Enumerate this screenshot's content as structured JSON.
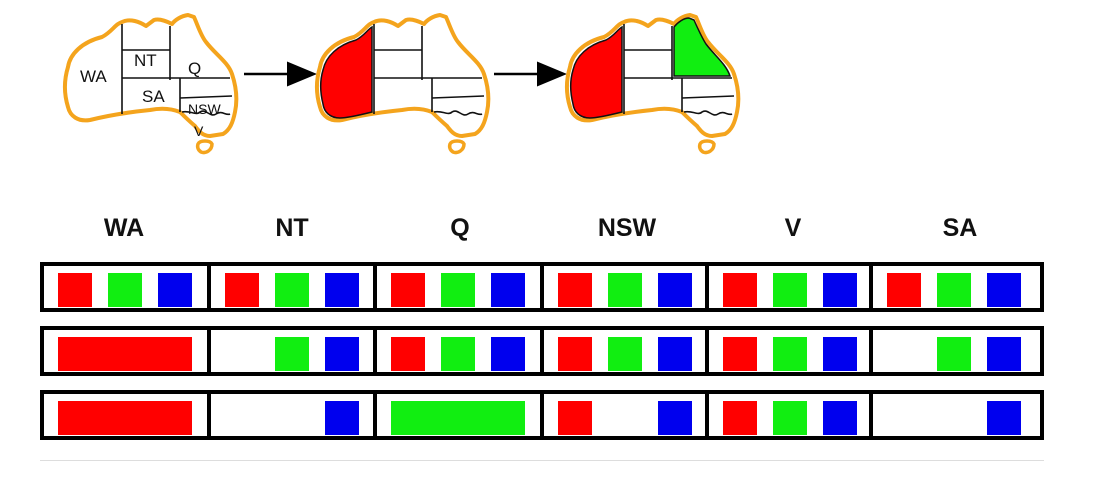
{
  "map_labels": {
    "wa": "WA",
    "nt": "NT",
    "q": "Q",
    "sa": "SA",
    "nsw": "NSW",
    "v": "V"
  },
  "map_colors": {
    "outline": "#f4a41d",
    "border": "#111111",
    "fill": "#ffffff"
  },
  "map_sequence": [
    {
      "colored": {}
    },
    {
      "colored": {
        "WA": "red"
      }
    },
    {
      "colored": {
        "WA": "red",
        "Q": "green"
      }
    }
  ],
  "columns": [
    "WA",
    "NT",
    "Q",
    "NSW",
    "V",
    "SA"
  ],
  "colors": {
    "red": "#ff0000",
    "green": "#11ee11",
    "blue": "#0000ee"
  },
  "domain_rows": [
    [
      [
        "red",
        "green",
        "blue"
      ],
      [
        "red",
        "green",
        "blue"
      ],
      [
        "red",
        "green",
        "blue"
      ],
      [
        "red",
        "green",
        "blue"
      ],
      [
        "red",
        "green",
        "blue"
      ],
      [
        "red",
        "green",
        "blue"
      ]
    ],
    [
      [
        "red"
      ],
      [
        "green",
        "blue"
      ],
      [
        "red",
        "green",
        "blue"
      ],
      [
        "red",
        "green",
        "blue"
      ],
      [
        "red",
        "green",
        "blue"
      ],
      [
        "green",
        "blue"
      ]
    ],
    [
      [
        "red"
      ],
      [
        "blue"
      ],
      [
        "green"
      ],
      [
        "red",
        "blue"
      ],
      [
        "red",
        "green",
        "blue"
      ],
      [
        "blue"
      ]
    ]
  ]
}
